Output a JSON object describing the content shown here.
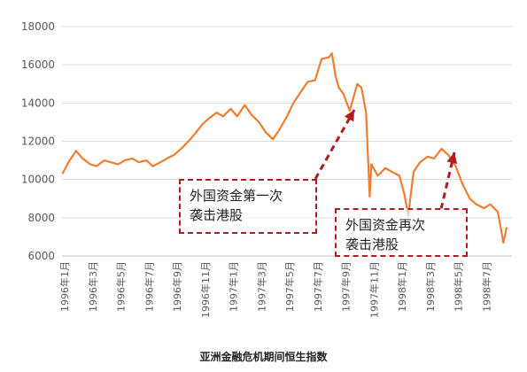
{
  "chart_data": {
    "type": "line",
    "title": "亚洲金融危机期间恒生指数",
    "ylim": [
      6000,
      18000
    ],
    "yticks": [
      6000,
      8000,
      10000,
      12000,
      14000,
      16000,
      18000
    ],
    "xlim": [
      "1996-01",
      "1998-08"
    ],
    "xticks": [
      "1996年1月",
      "1996年3月",
      "1996年5月",
      "1996年7月",
      "1996年9月",
      "1996年11月",
      "1997年1月",
      "1997年3月",
      "1997年5月",
      "1997年7月",
      "1997年9月",
      "1997年11月",
      "1998年1月",
      "1998年3月",
      "1998年5月",
      "1998年7月"
    ],
    "series": [
      {
        "color": "#ed7d31",
        "x": [
          "1996-01-02",
          "1996-01-15",
          "1996-02-01",
          "1996-02-15",
          "1996-03-01",
          "1996-03-15",
          "1996-04-01",
          "1996-04-15",
          "1996-05-01",
          "1996-05-15",
          "1996-06-01",
          "1996-06-15",
          "1996-07-01",
          "1996-07-15",
          "1996-08-01",
          "1996-08-15",
          "1996-09-01",
          "1996-09-15",
          "1996-10-01",
          "1996-10-15",
          "1996-11-01",
          "1996-11-15",
          "1996-12-01",
          "1996-12-15",
          "1997-01-01",
          "1997-01-15",
          "1997-02-01",
          "1997-02-15",
          "1997-03-01",
          "1997-03-15",
          "1997-04-01",
          "1997-04-15",
          "1997-05-01",
          "1997-05-15",
          "1997-06-01",
          "1997-06-15",
          "1997-07-01",
          "1997-07-15",
          "1997-08-01",
          "1997-08-07",
          "1997-08-15",
          "1997-08-22",
          "1997-09-01",
          "1997-09-15",
          "1997-10-01",
          "1997-10-10",
          "1997-10-20",
          "1997-10-28",
          "1997-11-01",
          "1997-11-15",
          "1997-12-01",
          "1997-12-15",
          "1998-01-01",
          "1998-01-12",
          "1998-01-20",
          "1998-02-01",
          "1998-02-15",
          "1998-03-01",
          "1998-03-15",
          "1998-04-01",
          "1998-04-15",
          "1998-05-01",
          "1998-05-15",
          "1998-06-01",
          "1998-06-15",
          "1998-07-01",
          "1998-07-15",
          "1998-08-01",
          "1998-08-13",
          "1998-08-20"
        ],
        "values": [
          10300,
          10900,
          11500,
          11100,
          10800,
          10700,
          11000,
          10900,
          10800,
          11000,
          11100,
          10900,
          11000,
          10700,
          10900,
          11100,
          11300,
          11600,
          12000,
          12400,
          12900,
          13200,
          13500,
          13300,
          13700,
          13300,
          13900,
          13400,
          13000,
          12500,
          12100,
          12600,
          13300,
          14000,
          14600,
          15100,
          15200,
          16300,
          16400,
          16600,
          15400,
          14800,
          14500,
          13600,
          15000,
          14800,
          13500,
          9100,
          10800,
          10200,
          10600,
          10400,
          10200,
          9200,
          8100,
          10400,
          10900,
          11200,
          11100,
          11600,
          11300,
          10700,
          9800,
          9000,
          8700,
          8500,
          8700,
          8300,
          6700,
          7500
        ]
      }
    ],
    "annotations": [
      {
        "line1": "外国资金第一次",
        "line2": "袭击港股"
      },
      {
        "line1": "外国资金再次",
        "line2": "袭击港股"
      }
    ]
  }
}
